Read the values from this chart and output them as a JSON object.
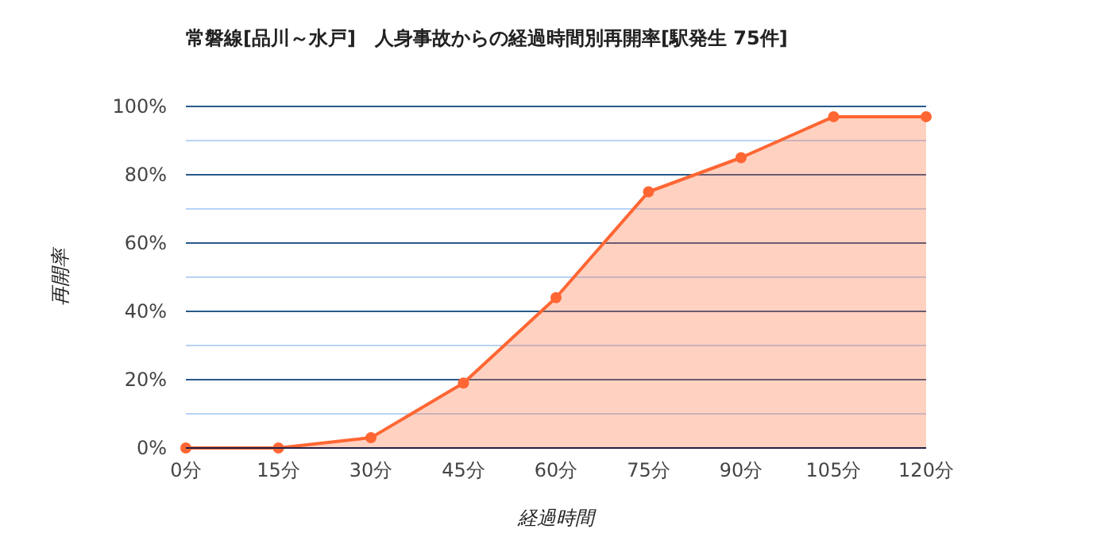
{
  "chart_data": {
    "type": "area",
    "title": "常磐線[品川～水戸]　人身事故からの経過時間別再開率[駅発生 75件]",
    "xlabel": "経過時間",
    "ylabel": "再開率",
    "x": [
      0,
      15,
      30,
      45,
      60,
      75,
      90,
      105,
      120
    ],
    "series": [
      {
        "color": "#ff6633",
        "values": [
          0,
          0,
          3,
          19,
          44,
          75,
          85,
          97,
          97
        ]
      }
    ],
    "xlim": [
      0,
      120
    ],
    "xticks": [
      {
        "value": 0,
        "label": "0分"
      },
      {
        "value": 15,
        "label": "15分"
      },
      {
        "value": 30,
        "label": "30分"
      },
      {
        "value": 45,
        "label": "45分"
      },
      {
        "value": 60,
        "label": "60分"
      },
      {
        "value": 75,
        "label": "75分"
      },
      {
        "value": 90,
        "label": "90分"
      },
      {
        "value": 105,
        "label": "105分"
      },
      {
        "value": 120,
        "label": "120分"
      }
    ],
    "ylim": [
      0,
      100
    ],
    "yticks": [
      {
        "value": 0,
        "label": "0%"
      },
      {
        "value": 10,
        "label": null
      },
      {
        "value": 20,
        "label": "20%"
      },
      {
        "value": 30,
        "label": null
      },
      {
        "value": 40,
        "label": "40%"
      },
      {
        "value": 50,
        "label": null
      },
      {
        "value": 60,
        "label": "60%"
      },
      {
        "value": 70,
        "label": null
      },
      {
        "value": 80,
        "label": "80%"
      },
      {
        "value": 90,
        "label": null
      },
      {
        "value": 100,
        "label": "100%"
      }
    ],
    "grid": "y",
    "marker": "circle",
    "line_style": "solid"
  }
}
